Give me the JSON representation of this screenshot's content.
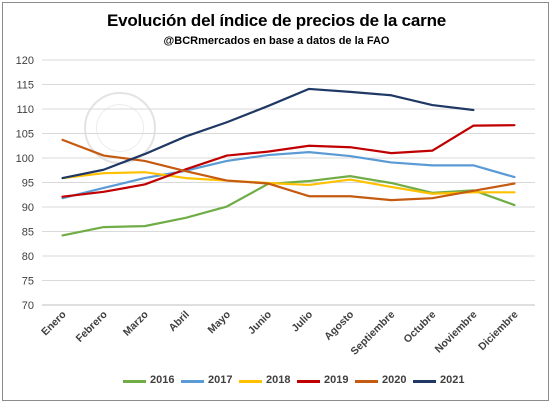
{
  "chart_data": {
    "type": "line",
    "title": "Evolución del índice de precios de la carne",
    "subtitle": "@BCRmercados en base a datos de la FAO",
    "xlabel": "",
    "ylabel": "",
    "categories": [
      "Enero",
      "Febrero",
      "Marzo",
      "Abril",
      "Mayo",
      "Junio",
      "Julio",
      "Agosto",
      "Septiembre",
      "Octubre",
      "Noviembre",
      "Diciembre"
    ],
    "ylim": [
      70,
      120
    ],
    "yticks": [
      70,
      75,
      80,
      85,
      90,
      95,
      100,
      105,
      110,
      115,
      120
    ],
    "grid": true,
    "legend_position": "bottom",
    "series": [
      {
        "name": "2016",
        "color": "#70ad47",
        "values": [
          84.2,
          85.9,
          86.1,
          87.8,
          90.1,
          94.7,
          95.3,
          96.3,
          94.9,
          92.9,
          93.4,
          90.4
        ]
      },
      {
        "name": "2017",
        "color": "#5b9bd5",
        "values": [
          91.8,
          93.9,
          95.9,
          97.4,
          99.4,
          100.6,
          101.2,
          100.4,
          99.1,
          98.5,
          98.5,
          96.1
        ]
      },
      {
        "name": "2018",
        "color": "#ffc000",
        "values": [
          95.9,
          96.9,
          97.1,
          95.9,
          95.4,
          94.9,
          94.5,
          95.6,
          94.1,
          92.7,
          93.0,
          93.0
        ]
      },
      {
        "name": "2019",
        "color": "#c00000",
        "values": [
          92.1,
          93.1,
          94.6,
          97.7,
          100.5,
          101.3,
          102.5,
          102.2,
          101.0,
          101.5,
          106.6,
          106.7
        ]
      },
      {
        "name": "2020",
        "color": "#c55a11",
        "values": [
          103.7,
          100.5,
          99.4,
          97.3,
          95.4,
          94.8,
          92.2,
          92.2,
          91.4,
          91.8,
          93.3,
          94.8
        ]
      },
      {
        "name": "2021",
        "color": "#1f3864",
        "values": [
          95.9,
          97.6,
          100.8,
          104.4,
          107.3,
          110.6,
          114.1,
          113.5,
          112.8,
          110.8,
          109.8,
          null
        ]
      }
    ]
  },
  "watermark": {
    "text": "BOLSA DE COMERCIO DE ROSARIO"
  }
}
